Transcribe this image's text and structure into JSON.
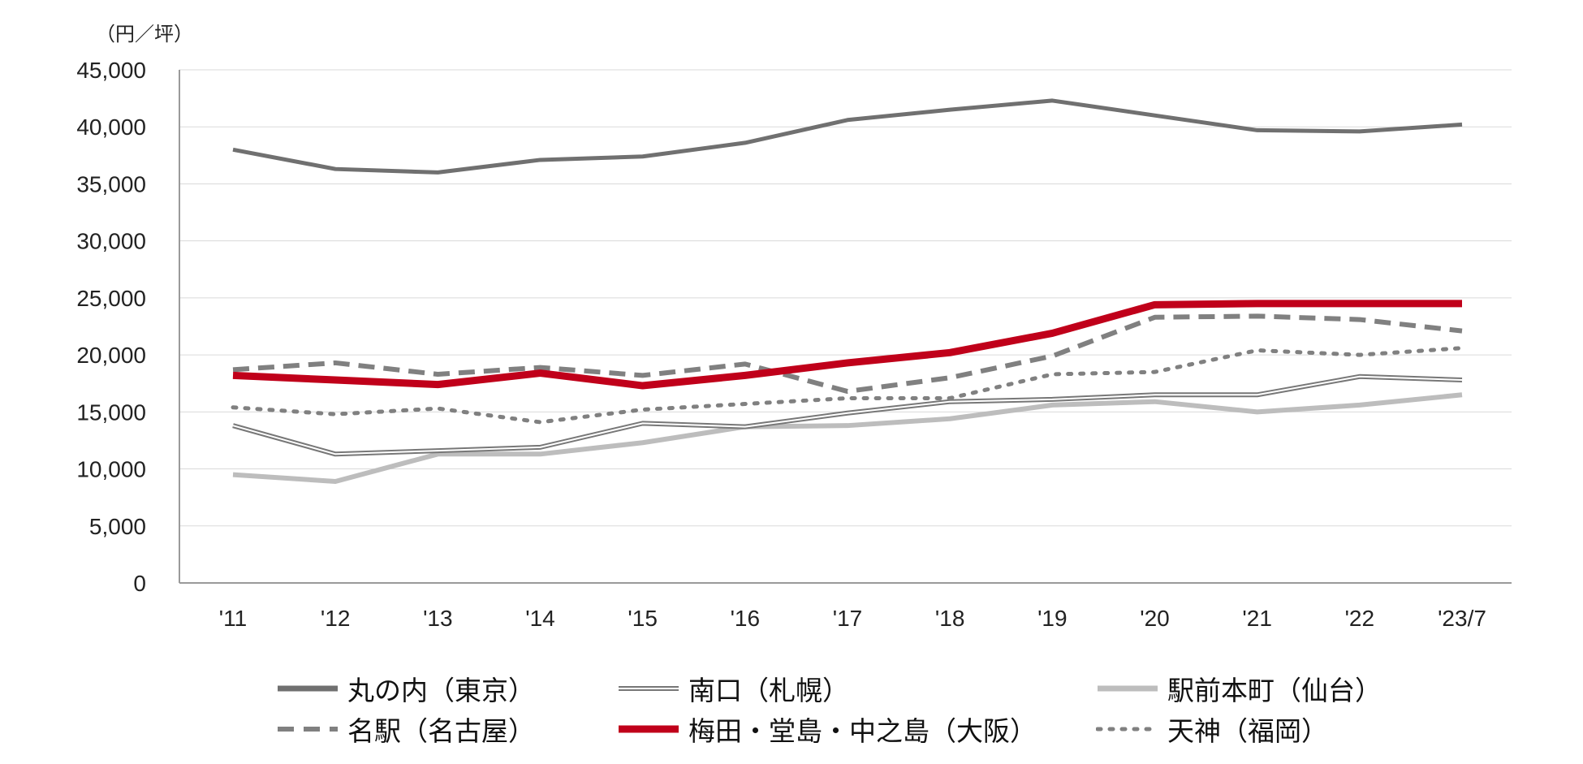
{
  "chart_data": {
    "type": "line",
    "unit_label": "（円／坪）",
    "categories": [
      "'11",
      "'12",
      "'13",
      "'14",
      "'15",
      "'16",
      "'17",
      "'18",
      "'19",
      "'20",
      "'21",
      "'22",
      "'23/7"
    ],
    "ylim": [
      0,
      45000
    ],
    "yticks": [
      0,
      5000,
      10000,
      15000,
      20000,
      25000,
      30000,
      35000,
      40000,
      45000
    ],
    "ytick_labels": [
      "0",
      "5,000",
      "10,000",
      "15,000",
      "20,000",
      "25,000",
      "30,000",
      "35,000",
      "40,000",
      "45,000"
    ],
    "grid": true,
    "legend_position": "bottom",
    "series": [
      {
        "name": "丸の内（東京）",
        "style": "solid",
        "color": "#707070",
        "values": [
          38000,
          36300,
          36000,
          37100,
          37400,
          38600,
          40600,
          41500,
          42300,
          41000,
          39700,
          39600,
          40200
        ]
      },
      {
        "name": "南口（札幌）",
        "style": "double",
        "color": "#777777",
        "values": [
          13800,
          11300,
          11600,
          11900,
          14000,
          13700,
          14900,
          15900,
          16100,
          16500,
          16500,
          18100,
          17800
        ]
      },
      {
        "name": "駅前本町（仙台）",
        "style": "solid",
        "color": "#bdbdbd",
        "values": [
          9500,
          8900,
          11300,
          11300,
          12300,
          13700,
          13800,
          14400,
          15600,
          15900,
          15000,
          15600,
          16500
        ]
      },
      {
        "name": "名駅（名古屋）",
        "style": "dashed",
        "color": "#808080",
        "values": [
          18700,
          19300,
          18300,
          18900,
          18200,
          19200,
          16800,
          18000,
          19900,
          23300,
          23400,
          23100,
          22100
        ]
      },
      {
        "name": "梅田・堂島・中之島（大阪）",
        "style": "solid",
        "color": "#c0001a",
        "values": [
          18200,
          17800,
          17400,
          18400,
          17300,
          18200,
          19300,
          20200,
          21900,
          24400,
          24500,
          24500,
          24500
        ]
      },
      {
        "name": "天神（福岡）",
        "style": "dotted",
        "color": "#808080",
        "values": [
          15400,
          14800,
          15300,
          14100,
          15200,
          15700,
          16200,
          16200,
          18300,
          18500,
          20400,
          20000,
          20600
        ]
      }
    ]
  }
}
